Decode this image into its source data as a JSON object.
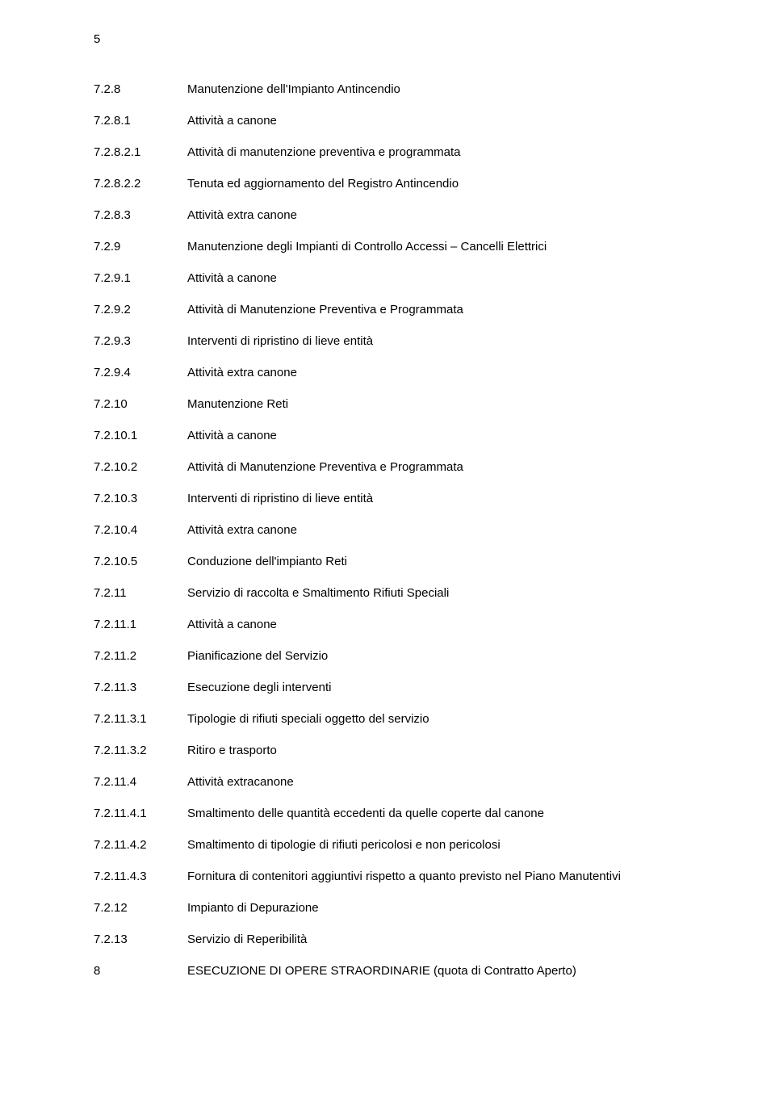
{
  "page_number": "5",
  "section_number": "8",
  "section_title": "ESECUZIONE DI OPERE STRAORDINARIE (quota di Contratto Aperto)",
  "toc": [
    {
      "num": "7.2.8",
      "label": "Manutenzione dell'Impianto Antincendio"
    },
    {
      "num": "7.2.8.1",
      "label": "Attività a canone"
    },
    {
      "num": "7.2.8.2.1",
      "label": "Attività di manutenzione preventiva e programmata"
    },
    {
      "num": "7.2.8.2.2",
      "label": "Tenuta ed aggiornamento del Registro Antincendio"
    },
    {
      "num": "7.2.8.3",
      "label": "Attività extra canone"
    },
    {
      "num": "7.2.9",
      "label": "Manutenzione degli Impianti di Controllo Accessi – Cancelli Elettrici"
    },
    {
      "num": "7.2.9.1",
      "label": "Attività a canone"
    },
    {
      "num": "7.2.9.2",
      "label": "Attività di Manutenzione Preventiva e Programmata"
    },
    {
      "num": "7.2.9.3",
      "label": "Interventi di ripristino di lieve entità"
    },
    {
      "num": "7.2.9.4",
      "label": "Attività extra canone"
    },
    {
      "num": "7.2.10",
      "label": "Manutenzione Reti"
    },
    {
      "num": "7.2.10.1",
      "label": "Attività a canone"
    },
    {
      "num": "7.2.10.2",
      "label": "Attività di Manutenzione Preventiva e Programmata"
    },
    {
      "num": "7.2.10.3",
      "label": "Interventi di ripristino di lieve entità"
    },
    {
      "num": "7.2.10.4",
      "label": "Attività extra canone"
    },
    {
      "num": "7.2.10.5",
      "label": "Conduzione dell'impianto Reti"
    },
    {
      "num": "7.2.11",
      "label": "Servizio di raccolta e Smaltimento Rifiuti Speciali"
    },
    {
      "num": "7.2.11.1",
      "label": "Attività a canone"
    },
    {
      "num": "7.2.11.2",
      "label": "Pianificazione del Servizio"
    },
    {
      "num": "7.2.11.3",
      "label": "Esecuzione degli interventi"
    },
    {
      "num": "7.2.11.3.1",
      "label": "Tipologie di rifiuti speciali oggetto del servizio"
    },
    {
      "num": "7.2.11.3.2",
      "label": "Ritiro e trasporto"
    },
    {
      "num": "7.2.11.4",
      "label": "Attività extracanone"
    },
    {
      "num": "7.2.11.4.1",
      "label": "Smaltimento delle quantità eccedenti da quelle coperte dal canone"
    },
    {
      "num": "7.2.11.4.2",
      "label": "Smaltimento di tipologie di rifiuti pericolosi e non pericolosi"
    },
    {
      "num": "7.2.11.4.3",
      "label": "Fornitura di contenitori aggiuntivi rispetto a quanto previsto nel Piano Manutentivi"
    },
    {
      "num": "7.2.12",
      "label": "Impianto di Depurazione"
    },
    {
      "num": "7.2.13",
      "label": "Servizio di Reperibilità"
    }
  ]
}
